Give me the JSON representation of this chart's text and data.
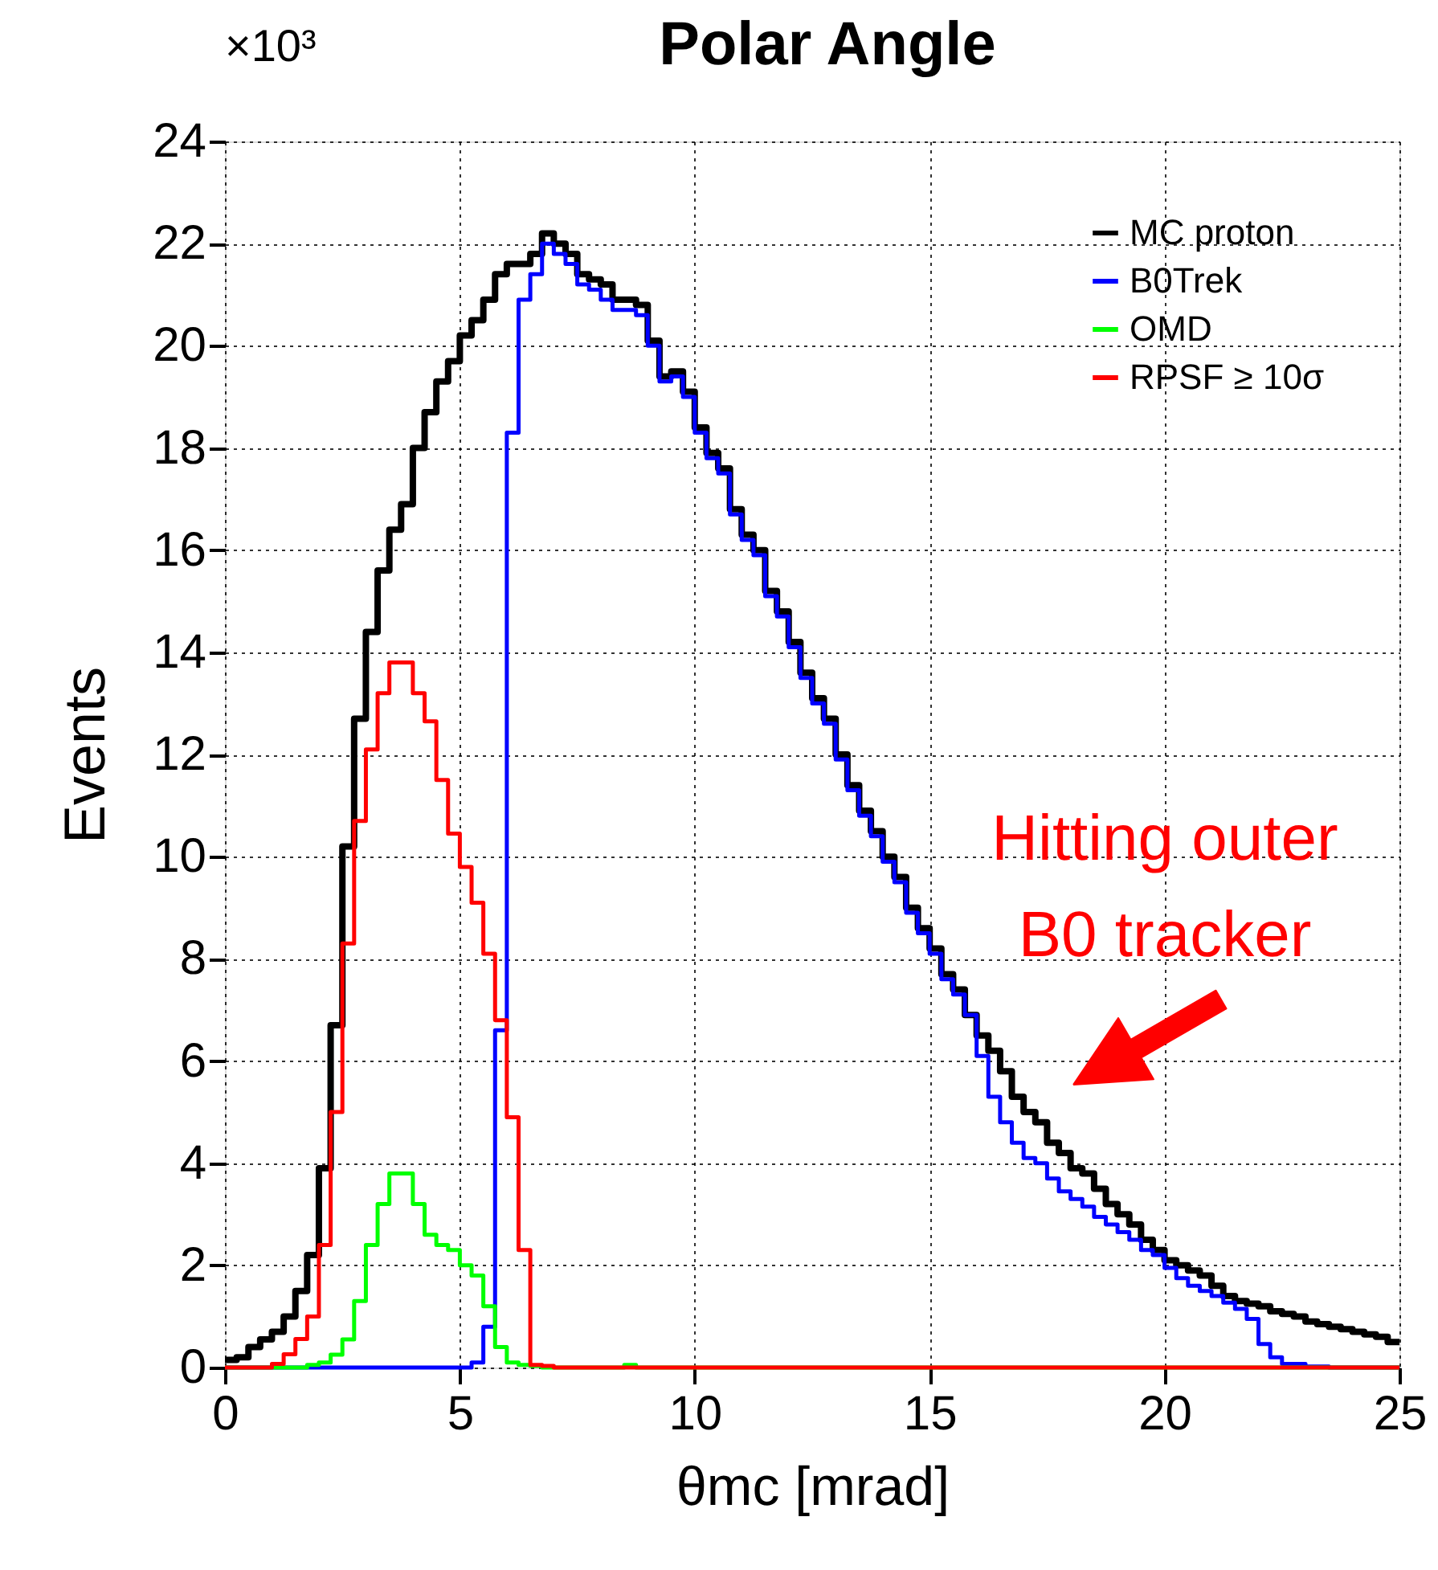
{
  "chart_data": {
    "type": "histogram",
    "title": "Polar Angle",
    "xlabel": "θmc [mrad]",
    "ylabel": "Events",
    "bins": [
      0,
      0.25,
      0.5,
      0.75,
      1,
      1.25,
      1.5,
      1.75,
      2,
      2.25,
      2.5,
      2.75,
      3,
      3.25,
      3.5,
      3.75,
      4,
      4.25,
      4.5,
      4.75,
      5,
      5.25,
      5.5,
      5.75,
      6,
      6.25,
      6.5,
      6.75,
      7,
      7.25,
      7.5,
      7.75,
      8,
      8.25,
      8.5,
      8.75,
      9,
      9.25,
      9.5,
      9.75,
      10,
      10.25,
      10.5,
      10.75,
      11,
      11.25,
      11.5,
      11.75,
      12,
      12.25,
      12.5,
      12.75,
      13,
      13.25,
      13.5,
      13.75,
      14,
      14.25,
      14.5,
      14.75,
      15,
      15.25,
      15.5,
      15.75,
      16,
      16.25,
      16.5,
      16.75,
      17,
      17.25,
      17.5,
      17.75,
      18,
      18.25,
      18.5,
      18.75,
      19,
      19.25,
      19.5,
      19.75,
      20,
      20.25,
      20.5,
      20.75,
      21,
      21.25,
      21.5,
      21.75,
      22,
      22.25,
      22.5,
      22.75,
      23,
      23.25,
      23.5,
      23.75,
      24,
      24.25,
      24.5,
      24.75,
      25
    ],
    "series": [
      {
        "name": "MC proton",
        "color": "#000000",
        "values": [
          0.15,
          0.2,
          0.4,
          0.55,
          0.7,
          1.0,
          1.5,
          2.2,
          3.9,
          6.7,
          10.2,
          12.7,
          14.4,
          15.6,
          16.4,
          16.9,
          18.0,
          18.7,
          19.3,
          19.7,
          20.2,
          20.5,
          20.9,
          21.4,
          21.6,
          21.6,
          21.8,
          22.2,
          22.0,
          21.8,
          21.4,
          21.3,
          21.2,
          20.9,
          20.9,
          20.8,
          20.1,
          19.4,
          19.5,
          19.1,
          18.4,
          17.9,
          17.6,
          16.8,
          16.3,
          16.0,
          15.2,
          14.8,
          14.2,
          13.6,
          13.1,
          12.7,
          12.0,
          11.4,
          10.9,
          10.5,
          10.0,
          9.6,
          9.0,
          8.6,
          8.2,
          7.7,
          7.4,
          6.9,
          6.5,
          6.2,
          5.8,
          5.3,
          5.0,
          4.8,
          4.4,
          4.2,
          3.9,
          3.8,
          3.5,
          3.2,
          3.0,
          2.8,
          2.5,
          2.3,
          2.1,
          2.0,
          1.9,
          1.8,
          1.6,
          1.4,
          1.3,
          1.25,
          1.2,
          1.1,
          1.05,
          1.0,
          0.9,
          0.85,
          0.8,
          0.75,
          0.7,
          0.65,
          0.6,
          0.5
        ]
      },
      {
        "name": "B0Trek",
        "color": "#0000ff",
        "values": [
          0,
          0,
          0,
          0,
          0,
          0,
          0,
          0,
          0,
          0,
          0,
          0,
          0,
          0,
          0,
          0,
          0,
          0,
          0,
          0,
          0,
          0.1,
          0.8,
          6.6,
          18.3,
          20.9,
          21.4,
          22.0,
          21.8,
          21.6,
          21.2,
          21.1,
          20.9,
          20.7,
          20.7,
          20.6,
          20.0,
          19.3,
          19.4,
          19.0,
          18.3,
          17.8,
          17.5,
          16.7,
          16.2,
          15.9,
          15.1,
          14.7,
          14.1,
          13.5,
          13.0,
          12.6,
          11.9,
          11.3,
          10.8,
          10.4,
          9.9,
          9.5,
          8.9,
          8.5,
          8.1,
          7.6,
          7.3,
          6.9,
          6.1,
          5.3,
          4.8,
          4.4,
          4.1,
          4.0,
          3.7,
          3.45,
          3.3,
          3.15,
          2.95,
          2.8,
          2.65,
          2.5,
          2.3,
          2.2,
          1.95,
          1.75,
          1.6,
          1.5,
          1.4,
          1.27,
          1.15,
          0.95,
          0.46,
          0.2,
          0.07,
          0.07,
          0.02,
          0.02,
          0,
          0,
          0,
          0,
          0,
          0
        ]
      },
      {
        "name": "OMD",
        "color": "#00ff00",
        "values": [
          0,
          0,
          0,
          0,
          0,
          0,
          0,
          0.05,
          0.1,
          0.25,
          0.55,
          1.3,
          2.4,
          3.2,
          3.8,
          3.8,
          3.2,
          2.6,
          2.4,
          2.3,
          2.0,
          1.8,
          1.2,
          0.4,
          0.1,
          0.05,
          0.03,
          0,
          0,
          0,
          0,
          0,
          0,
          0,
          0.05,
          0,
          0,
          0,
          0,
          0,
          0,
          0,
          0,
          0,
          0,
          0,
          0,
          0,
          0,
          0,
          0,
          0,
          0,
          0,
          0,
          0,
          0,
          0,
          0,
          0,
          0,
          0,
          0,
          0,
          0,
          0,
          0,
          0,
          0,
          0,
          0,
          0,
          0,
          0,
          0,
          0,
          0,
          0,
          0,
          0,
          0,
          0,
          0,
          0,
          0,
          0,
          0,
          0,
          0,
          0,
          0,
          0,
          0,
          0,
          0,
          0,
          0,
          0,
          0,
          0
        ]
      },
      {
        "name": "RPSF ≥ 10σ",
        "color": "#ff0000",
        "values": [
          0,
          0,
          0,
          0,
          0.07,
          0.26,
          0.56,
          1.0,
          2.4,
          5.0,
          8.3,
          10.7,
          12.1,
          13.2,
          13.8,
          13.8,
          13.2,
          12.65,
          11.5,
          10.45,
          9.8,
          9.1,
          8.1,
          6.8,
          4.9,
          2.3,
          0.05,
          0.03,
          0,
          0,
          0,
          0,
          0,
          0,
          0,
          0,
          0,
          0,
          0,
          0,
          0,
          0,
          0,
          0,
          0,
          0,
          0,
          0,
          0,
          0,
          0,
          0,
          0,
          0,
          0,
          0,
          0,
          0,
          0,
          0,
          0,
          0,
          0,
          0,
          0,
          0,
          0,
          0,
          0,
          0,
          0,
          0,
          0,
          0,
          0,
          0,
          0,
          0,
          0,
          0,
          0,
          0,
          0,
          0,
          0,
          0,
          0,
          0,
          0,
          0,
          0,
          0,
          0,
          0,
          0,
          0,
          0,
          0,
          0,
          0
        ]
      }
    ],
    "xlim": [
      0,
      25
    ],
    "xticks": [
      0,
      5,
      10,
      15,
      20,
      25
    ],
    "ylim": [
      0,
      24
    ],
    "yticks": [
      0,
      2,
      4,
      6,
      8,
      10,
      12,
      14,
      16,
      18,
      20,
      22,
      24
    ],
    "grid": true,
    "legend": "top right",
    "annotations": [
      "×10³",
      "Hitting outer\nB0 tracker"
    ]
  }
}
